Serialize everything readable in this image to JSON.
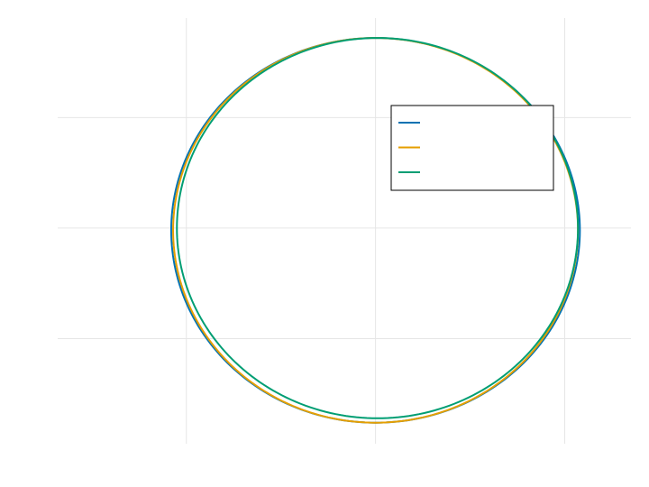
{
  "chart_data": {
    "type": "line",
    "title": "",
    "xlabel": "",
    "ylabel": "",
    "xlim": [
      -1.18,
      1.85
    ],
    "ylim": [
      -1.95,
      1.9
    ],
    "xticks": [
      -0.5,
      0.5,
      1.5
    ],
    "yticks": [
      -1,
      0,
      1
    ],
    "grid": true,
    "legend": {
      "position": "top-right",
      "entries": [
        "",
        "",
        ""
      ]
    },
    "series": [
      {
        "name": "",
        "color": "#0072b2",
        "shape": "ellipse",
        "center": [
          0.5,
          -0.02
        ],
        "radii": [
          1.08,
          1.74
        ]
      },
      {
        "name": "",
        "color": "#e69f00",
        "shape": "ellipse",
        "center": [
          0.5,
          -0.02
        ],
        "radii": [
          1.07,
          1.74
        ]
      },
      {
        "name": "",
        "color": "#009e73",
        "shape": "ellipse",
        "center": [
          0.51,
          0.0
        ],
        "radii": [
          1.06,
          1.72
        ]
      }
    ]
  }
}
